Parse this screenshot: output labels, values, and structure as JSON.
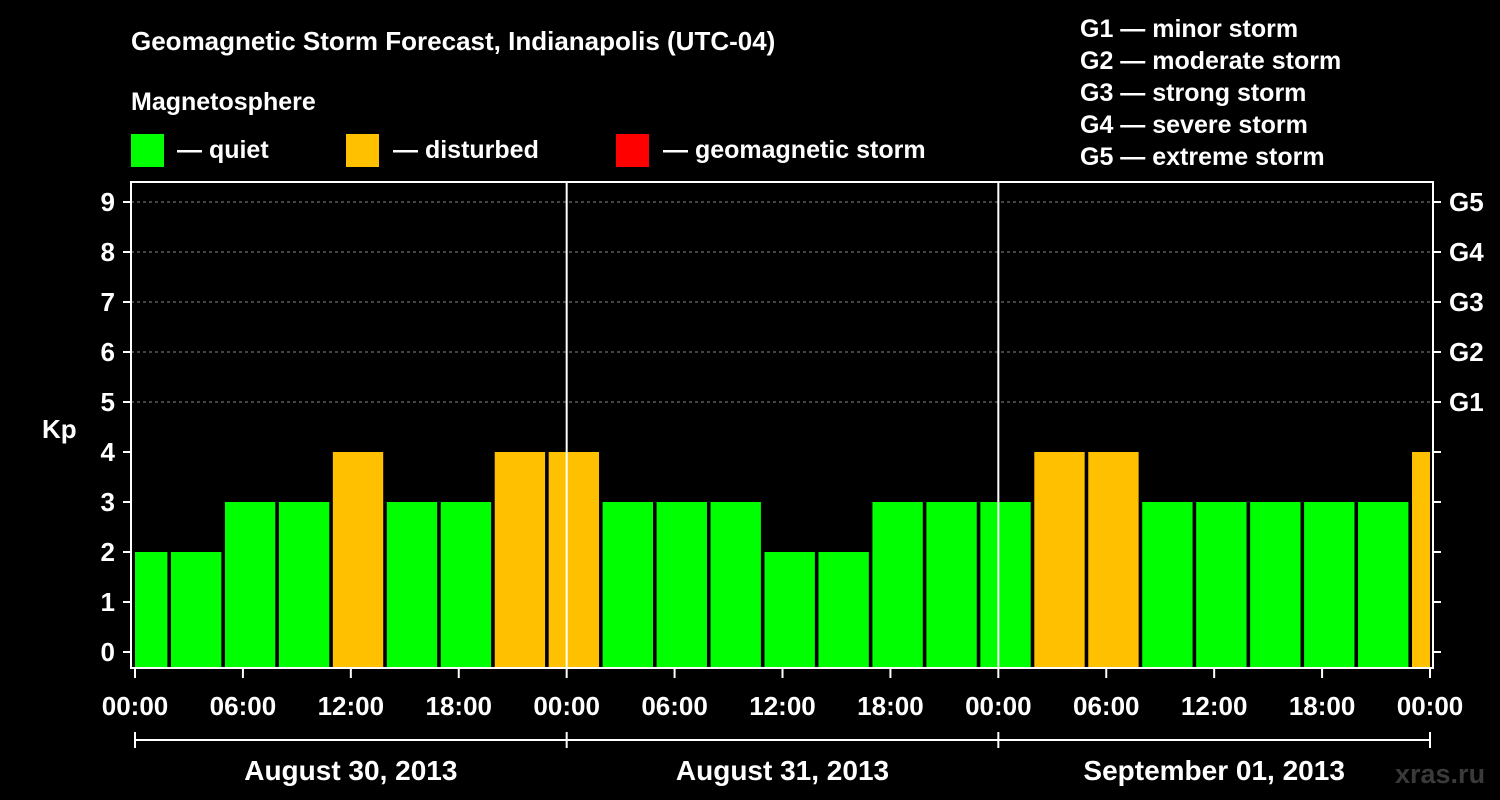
{
  "chart_data": {
    "type": "bar",
    "title": "Geomagnetic Storm Forecast, Indianapolis (UTC-04)",
    "ylabel": "Kp",
    "ylim": [
      0,
      9
    ],
    "yticks": [
      "0",
      "1",
      "2",
      "3",
      "4",
      "5",
      "6",
      "7",
      "8",
      "9"
    ],
    "storm_levels": [
      {
        "kp": 5,
        "label": "G1"
      },
      {
        "kp": 6,
        "label": "G2"
      },
      {
        "kp": 7,
        "label": "G3"
      },
      {
        "kp": 8,
        "label": "G4"
      },
      {
        "kp": 9,
        "label": "G5"
      }
    ],
    "legend_title": "Magnetosphere",
    "legend": [
      {
        "label": "— quiet",
        "color": "#00ff00"
      },
      {
        "label": "— disturbed",
        "color": "#ffc000"
      },
      {
        "label": "— geomagnetic storm",
        "color": "#ff0000"
      }
    ],
    "storm_scale": [
      "G1 — minor storm",
      "G2 — moderate storm",
      "G3 — strong storm",
      "G4 — severe storm",
      "G5 — extreme storm"
    ],
    "colors": {
      "quiet": "#00ff00",
      "disturbed": "#ffc000",
      "storm": "#ff0000"
    },
    "x_ticks": [
      {
        "hour": 0,
        "label": "00:00"
      },
      {
        "hour": 6,
        "label": "06:00"
      },
      {
        "hour": 12,
        "label": "12:00"
      },
      {
        "hour": 18,
        "label": "18:00"
      },
      {
        "hour": 24,
        "label": "00:00"
      },
      {
        "hour": 30,
        "label": "06:00"
      },
      {
        "hour": 36,
        "label": "12:00"
      },
      {
        "hour": 42,
        "label": "18:00"
      },
      {
        "hour": 48,
        "label": "00:00"
      },
      {
        "hour": 54,
        "label": "06:00"
      },
      {
        "hour": 60,
        "label": "12:00"
      },
      {
        "hour": 66,
        "label": "18:00"
      },
      {
        "hour": 72,
        "label": "00:00"
      }
    ],
    "days": [
      "August 30, 2013",
      "August 31, 2013",
      "September 01, 2013"
    ],
    "day_boundaries": [
      24,
      48
    ],
    "xlim": [
      0,
      72
    ],
    "bars": [
      {
        "start": 0,
        "end": 1.8,
        "kp": 2,
        "level": "quiet"
      },
      {
        "start": 2,
        "end": 4.8,
        "kp": 2,
        "level": "quiet"
      },
      {
        "start": 5,
        "end": 7.8,
        "kp": 3,
        "level": "quiet"
      },
      {
        "start": 8,
        "end": 10.8,
        "kp": 3,
        "level": "quiet"
      },
      {
        "start": 11,
        "end": 13.8,
        "kp": 4,
        "level": "disturbed"
      },
      {
        "start": 14,
        "end": 16.8,
        "kp": 3,
        "level": "quiet"
      },
      {
        "start": 17,
        "end": 19.8,
        "kp": 3,
        "level": "quiet"
      },
      {
        "start": 20,
        "end": 22.8,
        "kp": 4,
        "level": "disturbed"
      },
      {
        "start": 23,
        "end": 25.8,
        "kp": 4,
        "level": "disturbed"
      },
      {
        "start": 26,
        "end": 28.8,
        "kp": 3,
        "level": "quiet"
      },
      {
        "start": 29,
        "end": 31.8,
        "kp": 3,
        "level": "quiet"
      },
      {
        "start": 32,
        "end": 34.8,
        "kp": 3,
        "level": "quiet"
      },
      {
        "start": 35,
        "end": 37.8,
        "kp": 2,
        "level": "quiet"
      },
      {
        "start": 38,
        "end": 40.8,
        "kp": 2,
        "level": "quiet"
      },
      {
        "start": 41,
        "end": 43.8,
        "kp": 3,
        "level": "quiet"
      },
      {
        "start": 44,
        "end": 46.8,
        "kp": 3,
        "level": "quiet"
      },
      {
        "start": 47,
        "end": 49.8,
        "kp": 3,
        "level": "quiet"
      },
      {
        "start": 50,
        "end": 52.8,
        "kp": 4,
        "level": "disturbed"
      },
      {
        "start": 53,
        "end": 55.8,
        "kp": 4,
        "level": "disturbed"
      },
      {
        "start": 56,
        "end": 58.8,
        "kp": 3,
        "level": "quiet"
      },
      {
        "start": 59,
        "end": 61.8,
        "kp": 3,
        "level": "quiet"
      },
      {
        "start": 62,
        "end": 64.8,
        "kp": 3,
        "level": "quiet"
      },
      {
        "start": 65,
        "end": 67.8,
        "kp": 3,
        "level": "quiet"
      },
      {
        "start": 68,
        "end": 70.8,
        "kp": 3,
        "level": "quiet"
      },
      {
        "start": 71,
        "end": 72,
        "kp": 4,
        "level": "disturbed"
      }
    ],
    "grid": true,
    "legend_position": "top-left",
    "watermark": "xras.ru"
  }
}
